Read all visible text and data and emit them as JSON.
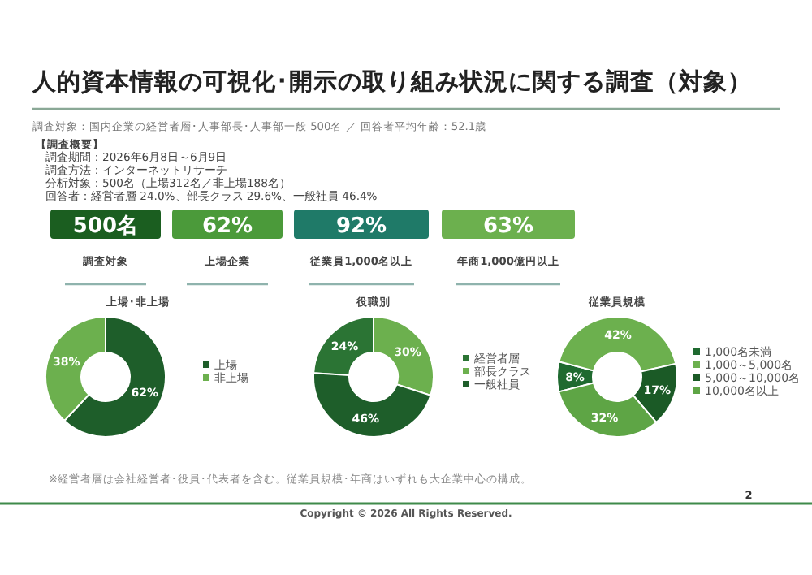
{
  "chart_data": [
    {
      "type": "other",
      "title": "人的資本情報の可視化･開示の取り組み状況に関する調査（対象）",
      "subtitle": "調査対象：国内企業の経営者層･人事部長･人事部一般 500名 ／ 回答者平均年齢：52.1歳",
      "categories": [
        "調査対象",
        "上場企業",
        "従業員1,000名以上",
        "年商1,000億円以上"
      ],
      "value_labels": [
        "500名",
        "62%",
        "92%",
        "63%"
      ],
      "colors": [
        "#1b5e20",
        "#4b9a3a",
        "#1f7a68",
        "#6cb04e"
      ],
      "annotations": [
        "【調査概要】",
        "調査期間：2026年6月8日～6月9日",
        "調査方法：インターネットリサーチ",
        "分析対象：500名（上場312名／非上場188名）",
        "回答者：経営者層 24.0%、部長クラス 29.6%、一般社員 46.4%",
        "※経営者層は会社経営者･役員･代表者を含む。従業員規模･年商はいずれも大企業中心の構成。",
        "Copyright © 2026 All Rights Reserved.",
        "2"
      ]
    },
    {
      "type": "donut",
      "title": "上場･非上場",
      "categories": [
        "上場",
        "非上場"
      ],
      "values": [
        62,
        38
      ],
      "value_labels": [
        "62%",
        "38%"
      ],
      "colors": [
        "#1e5e2a",
        "#6cb04e"
      ],
      "legend": "right"
    },
    {
      "type": "donut",
      "title": "役職別",
      "categories": [
        "経営者層",
        "部長クラス",
        "一般社員"
      ],
      "values": [
        24,
        30,
        46
      ],
      "value_labels": [
        "24%",
        "30%",
        "46%"
      ],
      "colors": [
        "#2b7434",
        "#6cb04e",
        "#1e5e2a"
      ],
      "legend": "right"
    },
    {
      "type": "donut",
      "title": "従業員規模",
      "categories": [
        "1,000名未満",
        "1,000～5,000名",
        "5,000～10,000名",
        "10,000名以上"
      ],
      "values": [
        8,
        42,
        17,
        32
      ],
      "value_labels": [
        "8%",
        "42%",
        "17%",
        "32%"
      ],
      "colors": [
        "#1f6a30",
        "#6cb04e",
        "#1b5a26",
        "#5ea545"
      ],
      "legend": "right"
    }
  ]
}
